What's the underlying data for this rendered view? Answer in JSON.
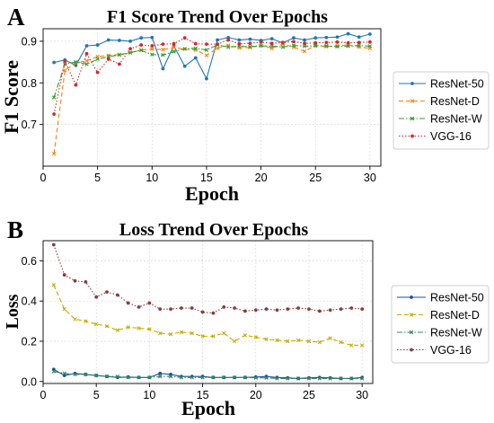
{
  "chart_data": [
    {
      "panel_label": "A",
      "type": "line",
      "title": "F1 Score Trend Over Epochs",
      "xlabel": "Epoch",
      "ylabel": "F1 Score",
      "xlim": [
        0,
        31
      ],
      "ylim": [
        0.6,
        0.93
      ],
      "xticks": [
        0,
        5,
        10,
        15,
        20,
        25,
        30
      ],
      "yticks": [
        0.7,
        0.8,
        0.9
      ],
      "ytick_labels": [
        "0.7",
        "0.8",
        "0.9"
      ],
      "grid": true,
      "legend_position": "right",
      "x": [
        1,
        2,
        3,
        4,
        5,
        6,
        7,
        8,
        9,
        10,
        11,
        12,
        13,
        14,
        15,
        16,
        17,
        18,
        19,
        20,
        21,
        22,
        23,
        24,
        25,
        26,
        27,
        28,
        29,
        30
      ],
      "series": [
        {
          "name": "ResNet-50",
          "color": "#1f77b4",
          "dash": "solid",
          "marker": "dot",
          "values": [
            0.849,
            0.855,
            0.842,
            0.889,
            0.891,
            0.903,
            0.902,
            0.9,
            0.908,
            0.909,
            0.834,
            0.889,
            0.84,
            0.86,
            0.81,
            0.903,
            0.909,
            0.903,
            0.905,
            0.902,
            0.906,
            0.896,
            0.908,
            0.903,
            0.908,
            0.909,
            0.91,
            0.918,
            0.91,
            0.917
          ]
        },
        {
          "name": "ResNet-D",
          "color": "#ff7f0e",
          "dash": "dashed",
          "marker": "x",
          "values": [
            0.63,
            0.83,
            0.848,
            0.853,
            0.863,
            0.866,
            0.868,
            0.872,
            0.879,
            0.881,
            0.88,
            0.885,
            0.881,
            0.879,
            0.866,
            0.883,
            0.89,
            0.884,
            0.885,
            0.89,
            0.883,
            0.893,
            0.886,
            0.876,
            0.89,
            0.887,
            0.889,
            0.891,
            0.886,
            0.883
          ]
        },
        {
          "name": "ResNet-W",
          "color": "#2ca02c",
          "dash": "dashdot",
          "marker": "x",
          "values": [
            0.765,
            0.845,
            0.85,
            0.845,
            0.857,
            0.863,
            0.867,
            0.873,
            0.878,
            0.868,
            0.867,
            0.875,
            0.882,
            0.883,
            0.879,
            0.891,
            0.886,
            0.888,
            0.887,
            0.889,
            0.888,
            0.886,
            0.89,
            0.888,
            0.889,
            0.889,
            0.887,
            0.888,
            0.89,
            0.888
          ]
        },
        {
          "name": "VGG-16",
          "color": "#d62728",
          "dash": "dotted",
          "marker": "dot",
          "values": [
            0.725,
            0.852,
            0.795,
            0.87,
            0.825,
            0.857,
            0.845,
            0.882,
            0.891,
            0.889,
            0.893,
            0.894,
            0.908,
            0.894,
            0.893,
            0.893,
            0.903,
            0.894,
            0.895,
            0.898,
            0.895,
            0.897,
            0.899,
            0.895,
            0.896,
            0.897,
            0.898,
            0.896,
            0.897,
            0.898
          ]
        }
      ]
    },
    {
      "panel_label": "B",
      "type": "line",
      "title": "Loss Trend Over Epochs",
      "xlabel": "Epoch",
      "ylabel": "Loss",
      "xlim": [
        0,
        31
      ],
      "ylim": [
        -0.01,
        0.7
      ],
      "xticks": [
        0,
        5,
        10,
        15,
        20,
        25,
        30
      ],
      "yticks": [
        0.0,
        0.2,
        0.4,
        0.6
      ],
      "ytick_labels": [
        "0.0",
        "0.2",
        "0.4",
        "0.6"
      ],
      "grid": true,
      "legend_position": "right",
      "x": [
        1,
        2,
        3,
        4,
        5,
        6,
        7,
        8,
        9,
        10,
        11,
        12,
        13,
        14,
        15,
        16,
        17,
        18,
        19,
        20,
        21,
        22,
        23,
        24,
        25,
        26,
        27,
        28,
        29,
        30
      ],
      "series": [
        {
          "name": "ResNet-50",
          "color": "#1f4e9e",
          "dash": "solid",
          "marker": "dot",
          "values": [
            0.06,
            0.03,
            0.04,
            0.035,
            0.03,
            0.025,
            0.02,
            0.022,
            0.02,
            0.02,
            0.04,
            0.035,
            0.025,
            0.025,
            0.025,
            0.02,
            0.02,
            0.02,
            0.02,
            0.022,
            0.025,
            0.02,
            0.018,
            0.015,
            0.018,
            0.02,
            0.018,
            0.015,
            0.015,
            0.02
          ]
        },
        {
          "name": "ResNet-D",
          "color": "#c9a800",
          "dash": "dashed",
          "marker": "x",
          "values": [
            0.48,
            0.36,
            0.31,
            0.3,
            0.285,
            0.275,
            0.255,
            0.27,
            0.265,
            0.26,
            0.24,
            0.235,
            0.245,
            0.24,
            0.225,
            0.225,
            0.24,
            0.2,
            0.23,
            0.22,
            0.21,
            0.205,
            0.2,
            0.205,
            0.2,
            0.195,
            0.215,
            0.195,
            0.18,
            0.18
          ]
        },
        {
          "name": "ResNet-W",
          "color": "#2e8b57",
          "dash": "dashdot",
          "marker": "x",
          "values": [
            0.05,
            0.04,
            0.035,
            0.035,
            0.03,
            0.025,
            0.025,
            0.02,
            0.02,
            0.02,
            0.025,
            0.025,
            0.02,
            0.02,
            0.02,
            0.02,
            0.02,
            0.02,
            0.02,
            0.018,
            0.018,
            0.015,
            0.015,
            0.015,
            0.015,
            0.015,
            0.015,
            0.015,
            0.015,
            0.015
          ]
        },
        {
          "name": "VGG-16",
          "color": "#8b3a3a",
          "dash": "dotted",
          "marker": "dot",
          "values": [
            0.68,
            0.53,
            0.5,
            0.495,
            0.42,
            0.445,
            0.43,
            0.39,
            0.37,
            0.39,
            0.36,
            0.36,
            0.365,
            0.365,
            0.345,
            0.34,
            0.37,
            0.365,
            0.35,
            0.355,
            0.36,
            0.355,
            0.36,
            0.365,
            0.36,
            0.35,
            0.355,
            0.36,
            0.365,
            0.36
          ]
        }
      ]
    }
  ]
}
